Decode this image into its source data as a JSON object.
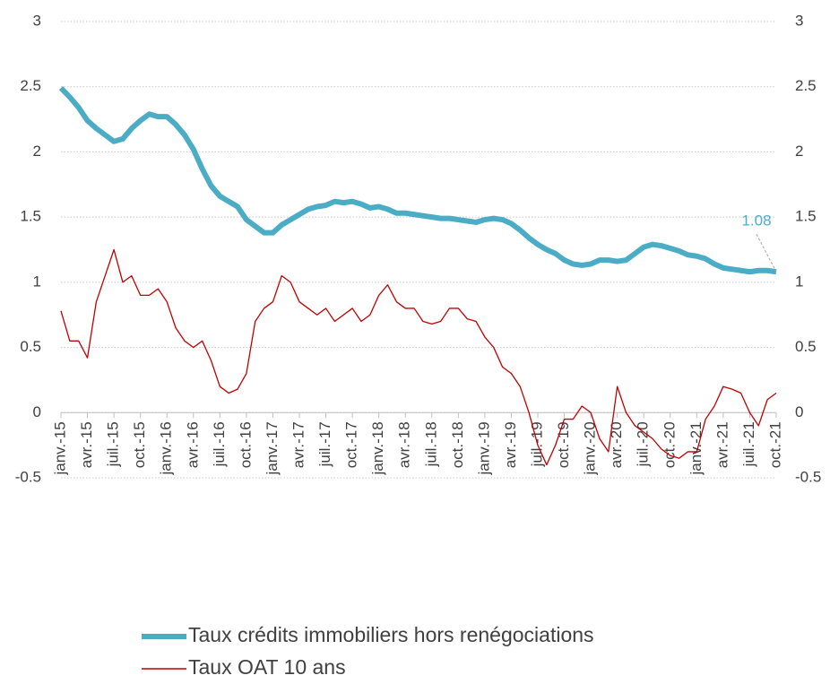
{
  "chart_data": {
    "type": "line",
    "categories": [
      "janv.-15",
      null,
      null,
      "avr.-15",
      null,
      null,
      "juil.-15",
      null,
      null,
      "oct.-15",
      null,
      null,
      "janv.-16",
      null,
      null,
      "avr.-16",
      null,
      null,
      "juil.-16",
      null,
      null,
      "oct.-16",
      null,
      null,
      "janv.-17",
      null,
      null,
      "avr.-17",
      null,
      null,
      "juil.-17",
      null,
      null,
      "oct.-17",
      null,
      null,
      "janv.-18",
      null,
      null,
      "avr.-18",
      null,
      null,
      "juil.-18",
      null,
      null,
      "oct.-18",
      null,
      null,
      "janv.-19",
      null,
      null,
      "avr.-19",
      null,
      null,
      "juil.-19",
      null,
      null,
      "oct.-19",
      null,
      null,
      "janv.-20",
      null,
      null,
      "avr.-20",
      null,
      null,
      "juil.-20",
      null,
      null,
      "oct.-20",
      null,
      null,
      "janv.-21",
      null,
      null,
      "avr.-21",
      null,
      null,
      "juil.-21",
      null,
      null,
      "oct.-21"
    ],
    "series": [
      {
        "name": "Taux crédits immobiliers hors renégociations",
        "color": "#4bacc6",
        "axis": "y",
        "values": [
          2.49,
          2.42,
          2.34,
          2.24,
          2.18,
          2.13,
          2.08,
          2.1,
          2.18,
          2.24,
          2.29,
          2.27,
          2.27,
          2.21,
          2.13,
          2.02,
          1.87,
          1.74,
          1.66,
          1.62,
          1.58,
          1.48,
          1.43,
          1.38,
          1.38,
          1.44,
          1.48,
          1.52,
          1.56,
          1.58,
          1.59,
          1.62,
          1.61,
          1.62,
          1.6,
          1.57,
          1.58,
          1.56,
          1.53,
          1.53,
          1.52,
          1.51,
          1.5,
          1.49,
          1.49,
          1.48,
          1.47,
          1.46,
          1.48,
          1.49,
          1.48,
          1.45,
          1.4,
          1.34,
          1.29,
          1.25,
          1.22,
          1.17,
          1.14,
          1.13,
          1.14,
          1.17,
          1.17,
          1.16,
          1.17,
          1.22,
          1.27,
          1.29,
          1.28,
          1.26,
          1.24,
          1.21,
          1.2,
          1.18,
          1.14,
          1.11,
          1.1,
          1.09,
          1.08,
          1.09,
          1.09,
          1.08
        ]
      },
      {
        "name": "Taux OAT 10 ans",
        "color": "#c00000",
        "axis": "y2",
        "values": [
          0.78,
          0.55,
          0.55,
          0.42,
          0.85,
          1.05,
          1.25,
          1.0,
          1.05,
          0.9,
          0.9,
          0.95,
          0.85,
          0.65,
          0.55,
          0.5,
          0.55,
          0.4,
          0.2,
          0.15,
          0.18,
          0.3,
          0.7,
          0.8,
          0.85,
          1.05,
          1.0,
          0.85,
          0.8,
          0.75,
          0.8,
          0.7,
          0.75,
          0.8,
          0.7,
          0.75,
          0.9,
          0.98,
          0.85,
          0.8,
          0.8,
          0.7,
          0.68,
          0.7,
          0.8,
          0.8,
          0.72,
          0.7,
          0.58,
          0.5,
          0.35,
          0.3,
          0.2,
          0.0,
          -0.25,
          -0.4,
          -0.25,
          -0.05,
          -0.05,
          0.05,
          0.0,
          -0.2,
          -0.3,
          0.2,
          0.0,
          -0.1,
          -0.15,
          -0.2,
          -0.28,
          -0.33,
          -0.35,
          -0.3,
          -0.3,
          -0.05,
          0.05,
          0.2,
          0.18,
          0.15,
          0.0,
          -0.1,
          0.1,
          0.15
        ]
      }
    ],
    "ylim": [
      -0.5,
      3
    ],
    "yticks": [
      -0.5,
      0,
      0.5,
      1,
      1.5,
      2,
      2.5,
      3
    ],
    "y2lim": [
      -0.5,
      3
    ],
    "y2ticks": [
      -0.5,
      0,
      0.5,
      1,
      1.5,
      2,
      2.5,
      3
    ],
    "grid": true
  }
}
